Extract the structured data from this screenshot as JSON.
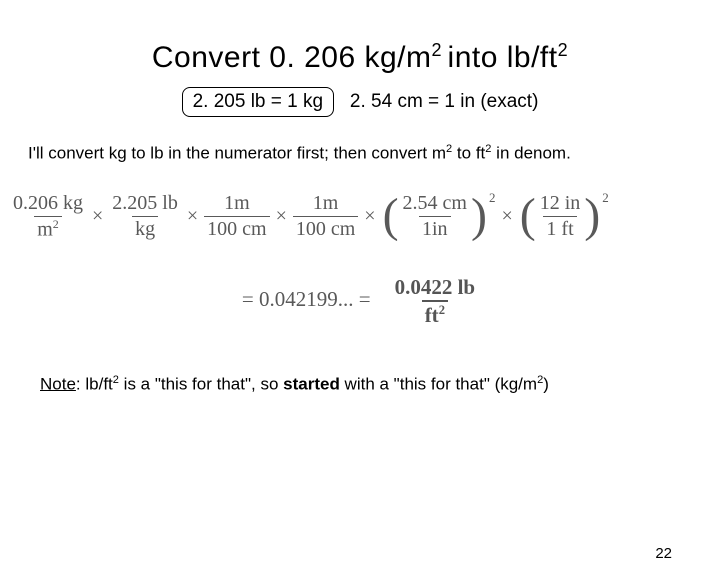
{
  "title": {
    "pre": "Convert 0. 206 kg/m",
    "sup1": "2 ",
    "mid": "into lb/ft",
    "sup2": "2"
  },
  "conv": {
    "boxed": "2. 205 lb = 1 kg",
    "rest": "2. 54 cm = 1 in (exact)"
  },
  "explain": {
    "a": "I'll convert kg to lb in the numerator first; then convert m",
    "s1": "2",
    "b": " to ft",
    "s2": "2",
    "c": " in denom."
  },
  "eq": {
    "f1": {
      "n": "0.206 kg",
      "d_pre": "m",
      "d_sup": "2"
    },
    "f2": {
      "n": "2.205 lb",
      "d": "kg"
    },
    "f3": {
      "n": "1m",
      "d": "100 cm"
    },
    "f4": {
      "n": "1m",
      "d": "100 cm"
    },
    "g1": {
      "n": "2.54 cm",
      "d": "1in",
      "p": "2"
    },
    "g2": {
      "n": "12 in",
      "d": "1 ft",
      "p": "2"
    },
    "mult": "×"
  },
  "result": {
    "lhs": "= 0.042199... =",
    "rn": "0.0422 lb",
    "rd_pre": "ft",
    "rd_sup": "2"
  },
  "note": {
    "label": "Note",
    "a": ":  lb/ft",
    "s1": "2",
    "b": " is a \"this for that\", so ",
    "bold": "started",
    "c": " with a \"this for that\" (kg/m",
    "s2": "2",
    "d": ")"
  },
  "pagenum": "22"
}
